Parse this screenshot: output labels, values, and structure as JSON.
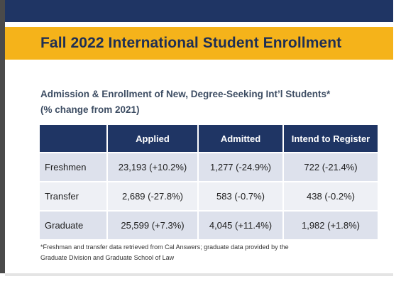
{
  "title": "Fall 2022 International Student Enrollment",
  "subtitle_line1": "Admission & Enrollment of New, Degree-Seeking Int’l Students*",
  "subtitle_line2": "(% change from 2021)",
  "table": {
    "headers": [
      "",
      "Applied",
      "Admitted",
      "Intend to Register"
    ],
    "rows": [
      {
        "label": "Freshmen",
        "applied": "23,193 (+10.2%)",
        "admitted": "1,277 (-24.9%)",
        "intend": "722 (-21.4%)"
      },
      {
        "label": "Transfer",
        "applied": "2,689 (-27.8%)",
        "admitted": "583 (-0.7%)",
        "intend": "438 (-0.2%)"
      },
      {
        "label": "Graduate",
        "applied": "25,599 (+7.3%)",
        "admitted": "4,045 (+11.4%)",
        "intend": "1,982 (+1.8%)"
      }
    ]
  },
  "footnote_line1": "*Freshman and transfer data retrieved from Cal Answers; graduate data provided by the",
  "footnote_line2": "Graduate Division and Graduate School of Law",
  "colors": {
    "navy": "#1f3564",
    "gold": "#f5b31a",
    "row": "#dde1ec",
    "row_alt": "#eef0f5"
  }
}
